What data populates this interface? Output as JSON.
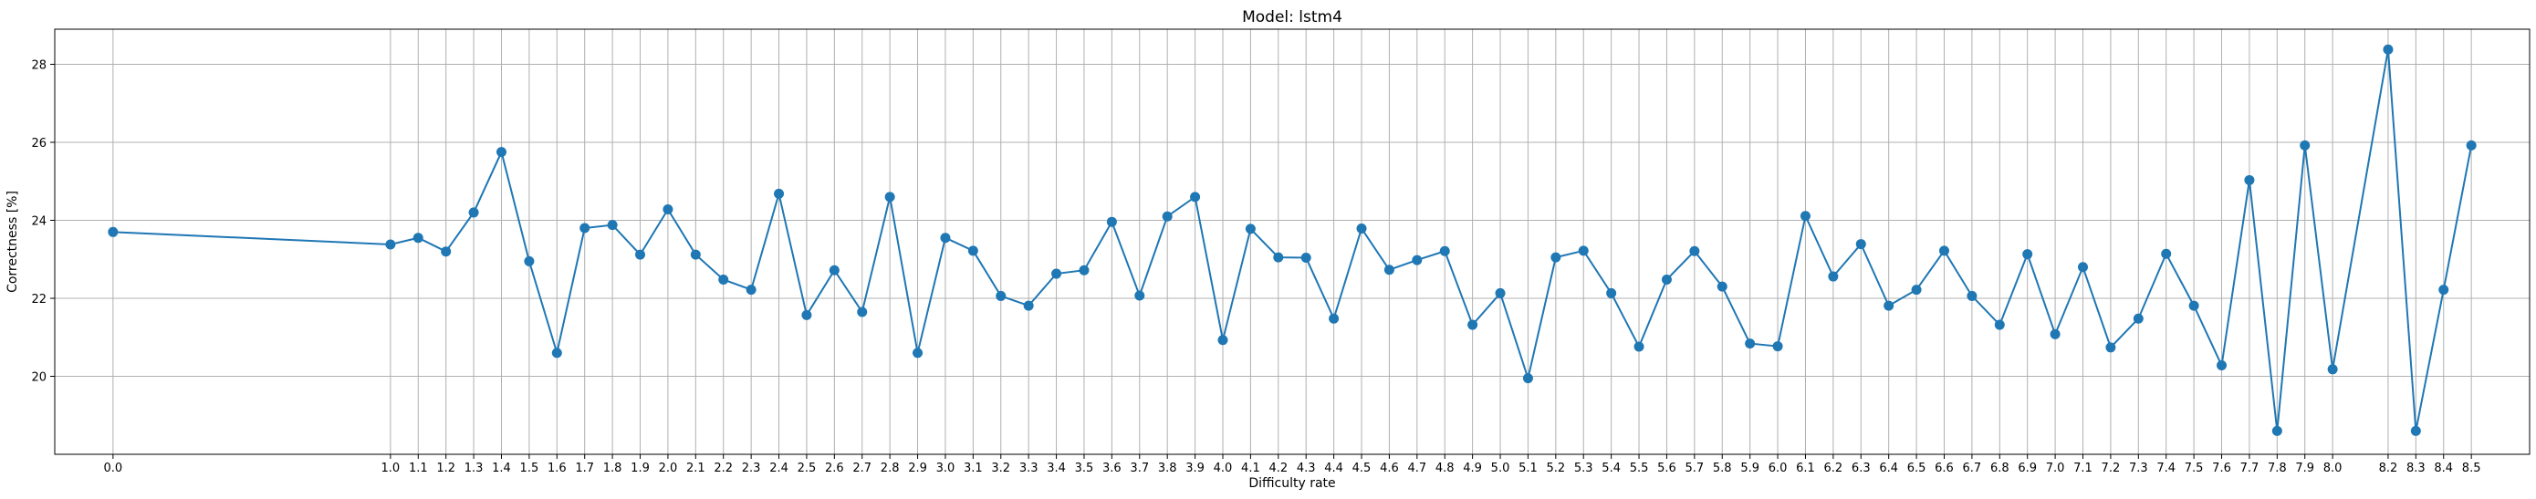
{
  "chart_data": {
    "type": "line",
    "title": "Model: lstm4",
    "xlabel": "Difficulty rate",
    "ylabel": "Correctness [%]",
    "xlim": [
      -0.21,
      8.71
    ],
    "ylim": [
      18.0,
      28.9
    ],
    "yticks": [
      20,
      22,
      24,
      26,
      28
    ],
    "grid": true,
    "marker": "circle",
    "color": "#1f77b4",
    "x": [
      0.0,
      1.0,
      1.1,
      1.2,
      1.3,
      1.4,
      1.5,
      1.6,
      1.7,
      1.8,
      1.9,
      2.0,
      2.1,
      2.2,
      2.3,
      2.4,
      2.5,
      2.6,
      2.7,
      2.8,
      2.9,
      3.0,
      3.1,
      3.2,
      3.3,
      3.4,
      3.5,
      3.6,
      3.7,
      3.8,
      3.9,
      4.0,
      4.1,
      4.2,
      4.3,
      4.4,
      4.5,
      4.6,
      4.7,
      4.8,
      4.9,
      5.0,
      5.1,
      5.2,
      5.3,
      5.4,
      5.5,
      5.6,
      5.7,
      5.8,
      5.9,
      6.0,
      6.1,
      6.2,
      6.3,
      6.4,
      6.5,
      6.6,
      6.7,
      6.8,
      6.9,
      7.0,
      7.1,
      7.2,
      7.3,
      7.4,
      7.5,
      7.6,
      7.7,
      7.8,
      7.9,
      8.0,
      8.2,
      8.3,
      8.4,
      8.5
    ],
    "xtick_labels": [
      "0.0",
      "1.0",
      "1.1",
      "1.2",
      "1.3",
      "1.4",
      "1.5",
      "1.6",
      "1.7",
      "1.8",
      "1.9",
      "2.0",
      "2.1",
      "2.2",
      "2.3",
      "2.4",
      "2.5",
      "2.6",
      "2.7",
      "2.8",
      "2.9",
      "3.0",
      "3.1",
      "3.2",
      "3.3",
      "3.4",
      "3.5",
      "3.6",
      "3.7",
      "3.8",
      "3.9",
      "4.0",
      "4.1",
      "4.2",
      "4.3",
      "4.4",
      "4.5",
      "4.6",
      "4.7",
      "4.8",
      "4.9",
      "5.0",
      "5.1",
      "5.2",
      "5.3",
      "5.4",
      "5.5",
      "5.6",
      "5.7",
      "5.8",
      "5.9",
      "6.0",
      "6.1",
      "6.2",
      "6.3",
      "6.4",
      "6.5",
      "6.6",
      "6.7",
      "6.8",
      "6.9",
      "7.0",
      "7.1",
      "7.2",
      "7.3",
      "7.4",
      "7.5",
      "7.6",
      "7.7",
      "7.8",
      "7.9",
      "8.0",
      "8.2",
      "8.3",
      "8.4",
      "8.5"
    ],
    "y": [
      23.7,
      23.38,
      23.55,
      23.2,
      24.2,
      25.75,
      22.95,
      20.6,
      23.8,
      23.88,
      23.12,
      24.28,
      23.12,
      22.48,
      22.22,
      24.68,
      21.57,
      22.72,
      21.65,
      24.6,
      20.6,
      23.55,
      23.22,
      22.06,
      21.81,
      22.63,
      22.72,
      23.96,
      22.07,
      24.1,
      24.6,
      20.93,
      23.78,
      23.05,
      23.04,
      21.48,
      23.79,
      22.73,
      22.98,
      23.21,
      21.32,
      22.13,
      19.95,
      23.05,
      23.22,
      22.13,
      20.76,
      22.48,
      23.21,
      22.3,
      20.84,
      20.77,
      24.11,
      22.56,
      23.39,
      21.81,
      22.22,
      23.22,
      22.06,
      21.32,
      23.13,
      21.08,
      22.8,
      20.74,
      21.48,
      23.14,
      21.81,
      20.28,
      25.03,
      18.6,
      25.92,
      20.18,
      28.38,
      18.6,
      22.22,
      25.92
    ]
  }
}
